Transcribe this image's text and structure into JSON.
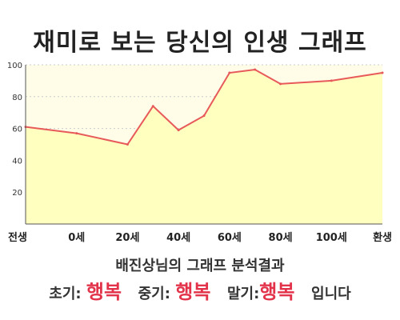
{
  "title": "재미로 보는 당신의 인생 그래프",
  "summary": {
    "heading": "배진상님의 그래프 분석결과",
    "early_label": "초기:",
    "early_value": "행복",
    "middle_label": "중기:",
    "middle_value": "행복",
    "late_label": "말기:",
    "late_value": "행복",
    "ending": "입니다"
  },
  "chart_data": {
    "type": "area",
    "x_tick_labels": [
      "전생",
      "0세",
      "20세",
      "40세",
      "60세",
      "80세",
      "100세",
      "환생"
    ],
    "y_ticks": [
      20,
      40,
      60,
      80,
      100
    ],
    "ylim": [
      0,
      100
    ],
    "points": [
      {
        "x": "전생",
        "y": 61
      },
      {
        "x": "0세",
        "y": 57
      },
      {
        "x": "20세",
        "y": 50
      },
      {
        "x": "30세",
        "y": 74
      },
      {
        "x": "40세",
        "y": 59
      },
      {
        "x": "50세",
        "y": 68
      },
      {
        "x": "60세",
        "y": 95
      },
      {
        "x": "70세",
        "y": 97
      },
      {
        "x": "80세",
        "y": 88
      },
      {
        "x": "100세",
        "y": 90
      },
      {
        "x": "환생",
        "y": 95
      }
    ],
    "grid": true,
    "colors": {
      "line": "#e85a5a",
      "fill": "#ffffc0",
      "plot_bg": "#fffde8",
      "grid": "#cccccc"
    }
  }
}
